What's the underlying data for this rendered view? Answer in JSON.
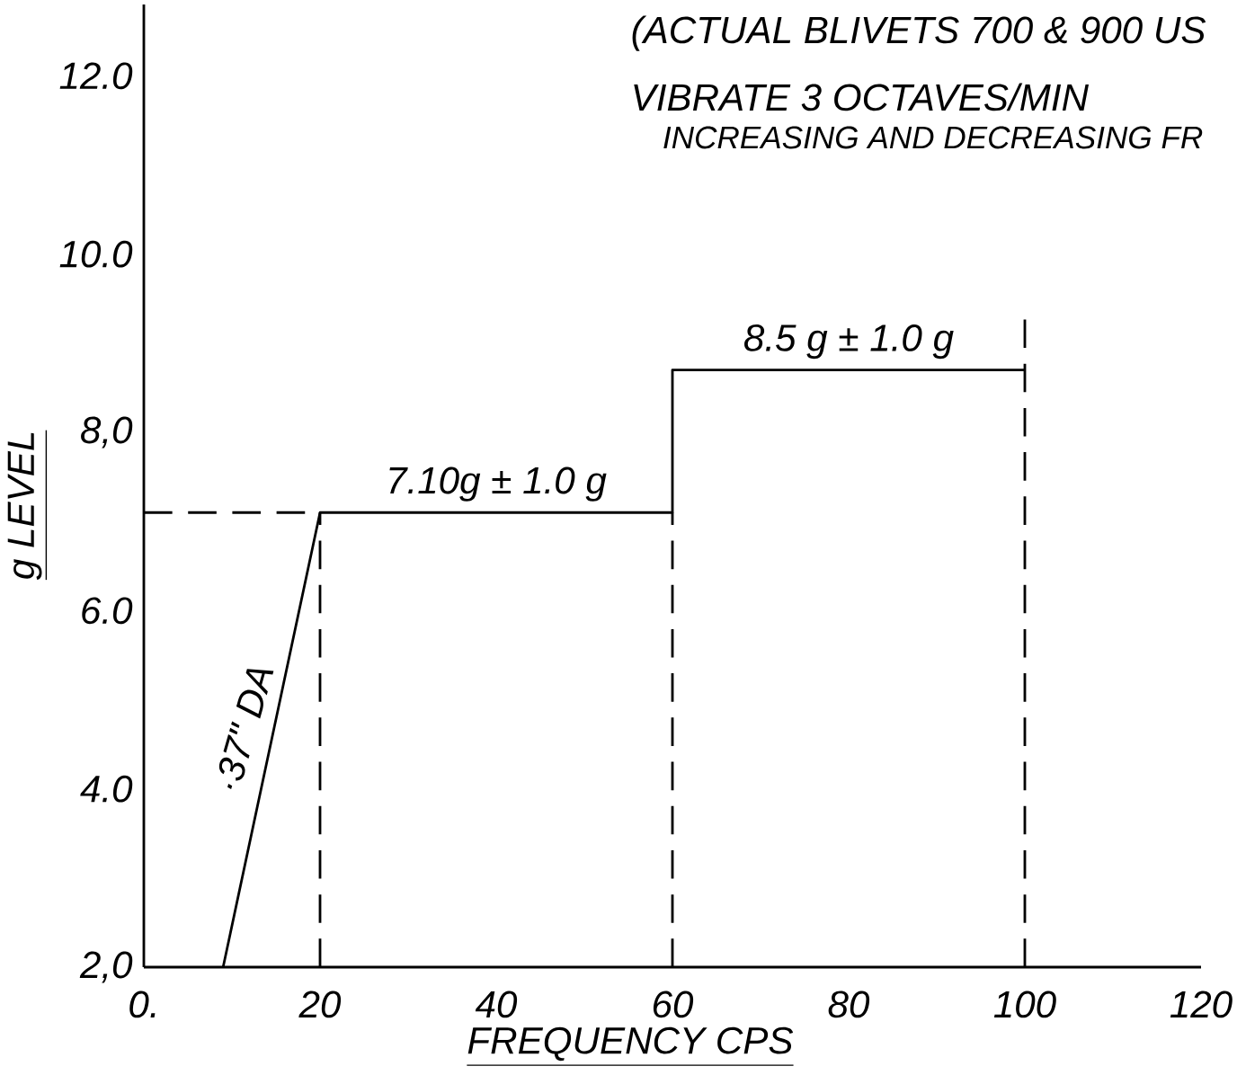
{
  "chart_data": {
    "type": "line",
    "title": "(ACTUAL BLIVETS 700 & 900 US",
    "subtitle": "VIBRATE 3 OCTAVES/MIN",
    "xlabel": "FREQUENCY CPS",
    "ylabel": "g LEVEL",
    "xlim": [
      0,
      120
    ],
    "ylim": [
      2,
      12.8
    ],
    "xticks": [
      {
        "value": 0,
        "label": "0."
      },
      20,
      40,
      60,
      80,
      100,
      120
    ],
    "yticks": [
      {
        "value": 2,
        "label": "2,0"
      },
      {
        "value": 4,
        "label": "4.0"
      },
      {
        "value": 6,
        "label": "6.0"
      },
      {
        "value": 8,
        "label": "8,0"
      },
      {
        "value": 10,
        "label": "10.0"
      },
      {
        "value": 12,
        "label": "12.0"
      }
    ],
    "series": [
      {
        "color": "#000000",
        "line_style": "solid",
        "x": [
          9,
          20,
          60,
          60,
          100
        ],
        "values": [
          2,
          7.1,
          7.1,
          8.7,
          8.7
        ]
      },
      {
        "color": "#000000",
        "line_style": "dashed",
        "x": [
          0,
          20
        ],
        "values": [
          7.1,
          7.1
        ]
      },
      {
        "color": "#000000",
        "line_style": "dashed",
        "x": [
          20,
          20
        ],
        "values": [
          2,
          7.1
        ]
      },
      {
        "color": "#000000",
        "line_style": "dashed",
        "x": [
          60,
          60
        ],
        "values": [
          2,
          7.1
        ]
      },
      {
        "color": "#000000",
        "line_style": "dashed",
        "x": [
          100,
          100
        ],
        "values": [
          2,
          9.3
        ]
      }
    ],
    "annotations": [
      "INCREASING AND DECREASING FR",
      {
        "text": "7.10g ± 1.0 g",
        "x": 40,
        "y": 7.1
      },
      {
        "text": "8.5 g ± 1.0 g",
        "x": 80,
        "y": 8.7
      },
      {
        "text": "·37\" DA",
        "x": 14,
        "y": 4.6
      }
    ]
  }
}
